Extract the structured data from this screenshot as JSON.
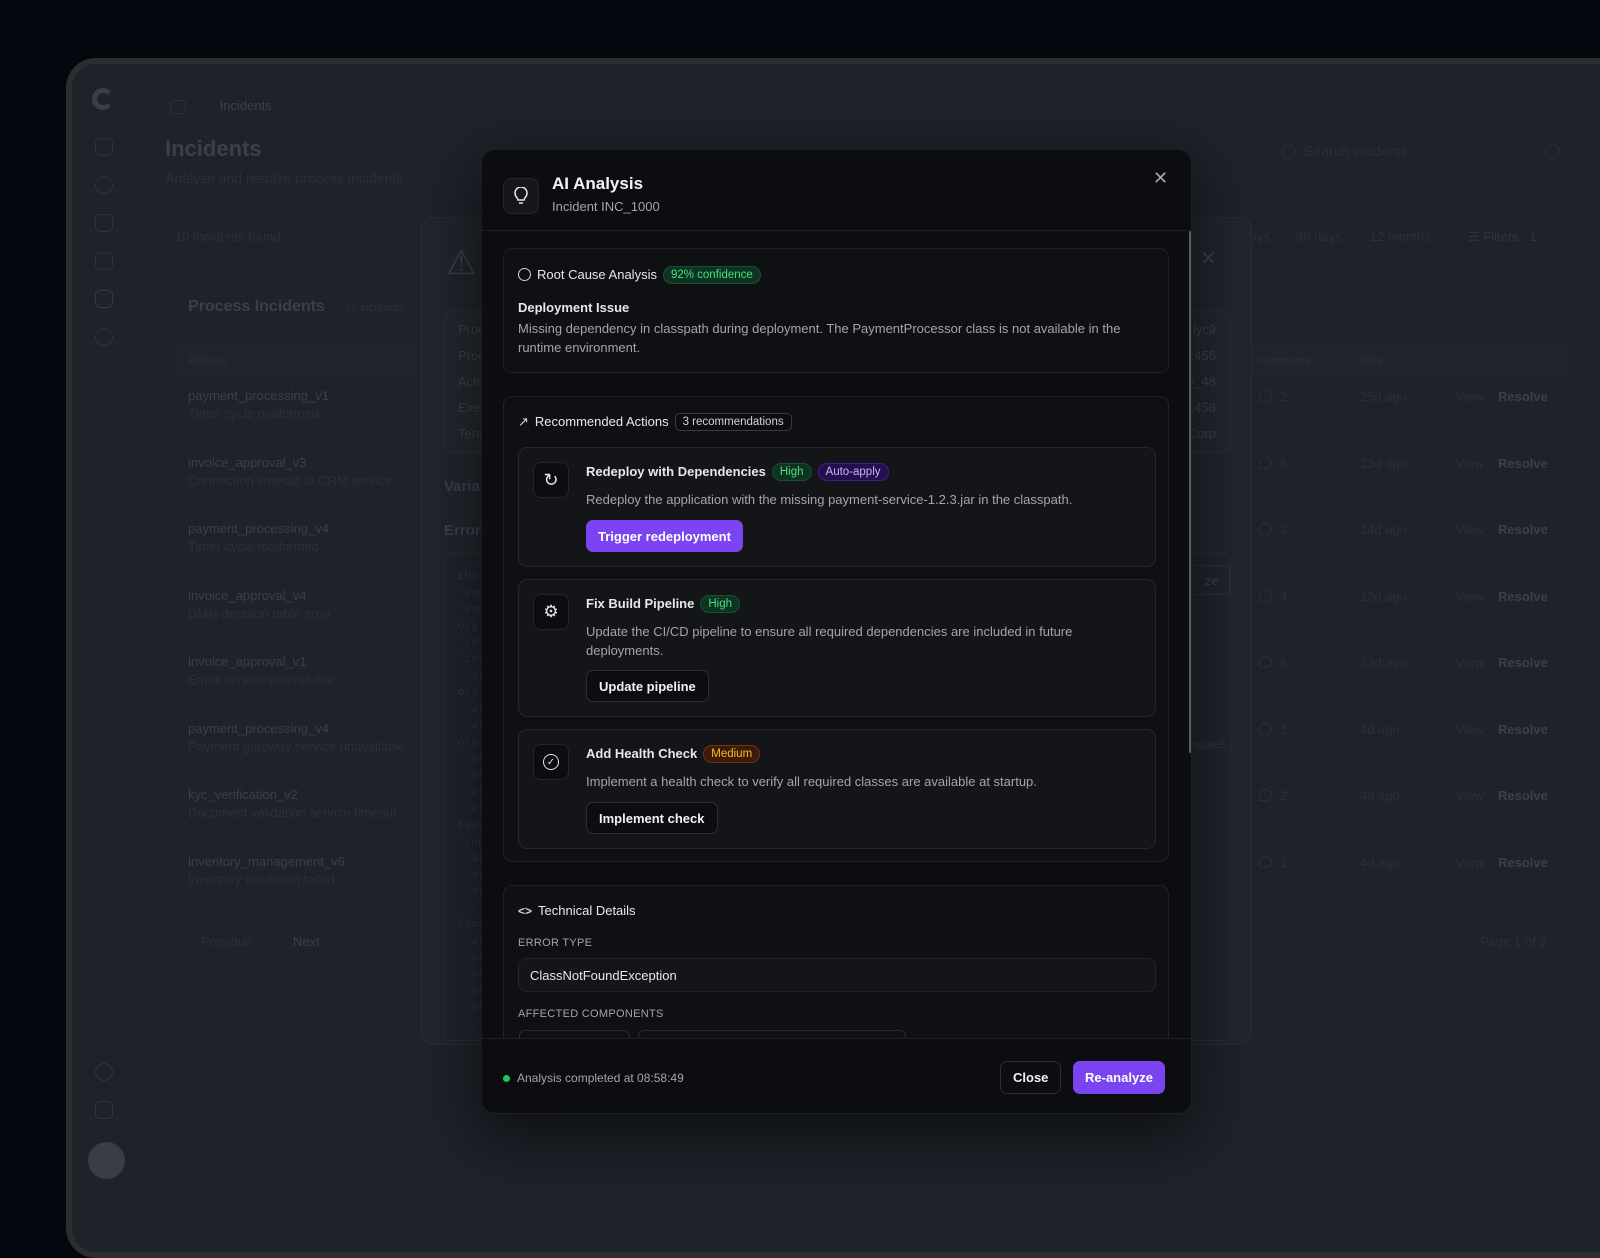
{
  "background": {
    "breadcrumb": "Incidents",
    "title": "Incidents",
    "subtitle": "Analyze and resolve process incidents",
    "found": "10 incidents found",
    "search_placeholder": "Search incidents",
    "time_tabs": [
      "ays",
      "30 days",
      "12 months"
    ],
    "filters_label": "Filters",
    "filters_count": "1",
    "list_title": "Process Incidents",
    "list_count": "10 incidents",
    "col_process": "Process",
    "col_comments": "Comments",
    "col_date": "Date",
    "rows": [
      {
        "name": "payment_processing_v1",
        "sub": "Timer cycle malformed",
        "comments": "2",
        "date": "25d ago"
      },
      {
        "name": "invoice_approval_v3",
        "sub": "Connection timeout to CRM service",
        "comments": "5",
        "date": "23d ago"
      },
      {
        "name": "payment_processing_v4",
        "sub": "Timer cycle malformed",
        "comments": "3",
        "date": "14d ago"
      },
      {
        "name": "invoice_approval_v4",
        "sub": "DMN decision table error",
        "comments": "4",
        "date": "13d ago"
      },
      {
        "name": "invoice_approval_v1",
        "sub": "Email service unavailable",
        "comments": "6",
        "date": "33d ago"
      },
      {
        "name": "payment_processing_v4",
        "sub": "Payment gateway service unavailable",
        "comments": "1",
        "date": "4d ago"
      },
      {
        "name": "kyc_verification_v2",
        "sub": "Document validation service timeout",
        "comments": "2",
        "date": "4d ago"
      },
      {
        "name": "inventory_management_v6",
        "sub": "Inventory validation failed",
        "comments": "1",
        "date": "4d ago"
      }
    ],
    "view_label": "View",
    "resolve_label": "Resolve",
    "prev_label": "Previous",
    "next_label": "Next",
    "page_label": "Page 1 of 2",
    "detail": {
      "info_labels": [
        "Proc",
        "Proc",
        "Acti",
        "Exec",
        "Tena"
      ],
      "info_values": [
        "lyc9",
        ":456",
        "y_48",
        ":456",
        "Corp"
      ],
      "variables_heading": "Varia",
      "error_heading": "Error",
      "code_lines": [
        "ENG",
        "'con",
        "'con",
        "org.",
        "'com",
        "'com",
        "  at",
        "org.",
        "  at",
        "  at",
        "org.",
        "  at",
        "  at",
        "  at",
        "  at",
        "Caus",
        "'con",
        "  at",
        "  at",
        "  at",
        "  ...",
        "Caus",
        "  at",
        "  at",
        "  at",
        "  at",
        "  at",
        "  ..."
      ],
      "analyze_fragment": "ze",
      "code_fragment": "egateE"
    }
  },
  "modal": {
    "title": "AI Analysis",
    "subtitle": "Incident INC_1000",
    "root": {
      "heading": "Root Cause Analysis",
      "confidence": "92% confidence",
      "title": "Deployment Issue",
      "text": "Missing dependency in classpath during deployment. The PaymentProcessor class is not available in the runtime environment."
    },
    "recs": {
      "heading": "Recommended Actions",
      "count": "3 recommendations",
      "items": [
        {
          "icon": "refresh-icon",
          "title": "Redeploy with Dependencies",
          "priority": "High",
          "extra": "Auto-apply",
          "text": "Redeploy the application with the missing payment-service-1.2.3.jar in the classpath.",
          "button": "Trigger redeployment"
        },
        {
          "icon": "gear-icon",
          "title": "Fix Build Pipeline",
          "priority": "High",
          "text": "Update the CI/CD pipeline to ensure all required dependencies are included in future deployments.",
          "button": "Update pipeline"
        },
        {
          "icon": "check-circle-icon",
          "title": "Add Health Check",
          "priority": "Medium",
          "text": "Implement a health check to verify all required classes are available at startup.",
          "button": "Implement check"
        }
      ]
    },
    "tech": {
      "heading": "Technical Details",
      "error_type_label": "ERROR TYPE",
      "error_type": "ClassNotFoundException",
      "components_label": "AFFECTED COMPONENTS"
    },
    "footer": {
      "status": "Analysis completed at 08:58:49",
      "close": "Close",
      "reanalyze": "Re-analyze"
    }
  },
  "colors": {
    "accent": "#7a45f0",
    "success": "#22c55e",
    "background": "#05070e"
  }
}
